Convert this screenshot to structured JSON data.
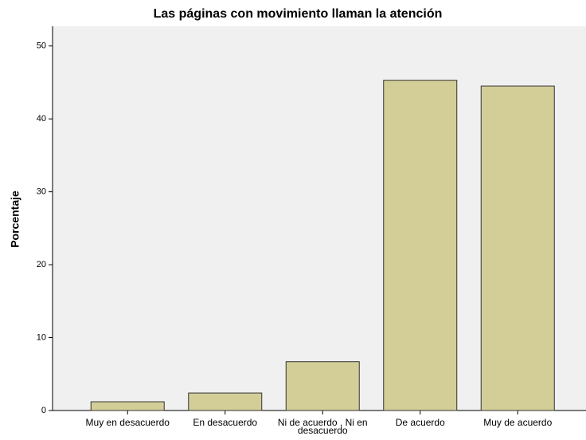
{
  "chart_data": {
    "type": "bar",
    "title": "Las páginas con movimiento llaman la atención",
    "ylabel": "Porcentaje",
    "categories": [
      "Muy en desacuerdo",
      "En desacuerdo",
      "Ni de acuerdo , Ni en desacuerdo",
      "De acuerdo",
      "Muy de acuerdo"
    ],
    "values": [
      1.2,
      2.4,
      6.7,
      45.3,
      44.5
    ],
    "color": "#d3ce97",
    "ylim": [
      0,
      52.7
    ],
    "yticks": [
      0,
      10,
      20,
      30,
      40,
      50
    ],
    "grid": false
  }
}
